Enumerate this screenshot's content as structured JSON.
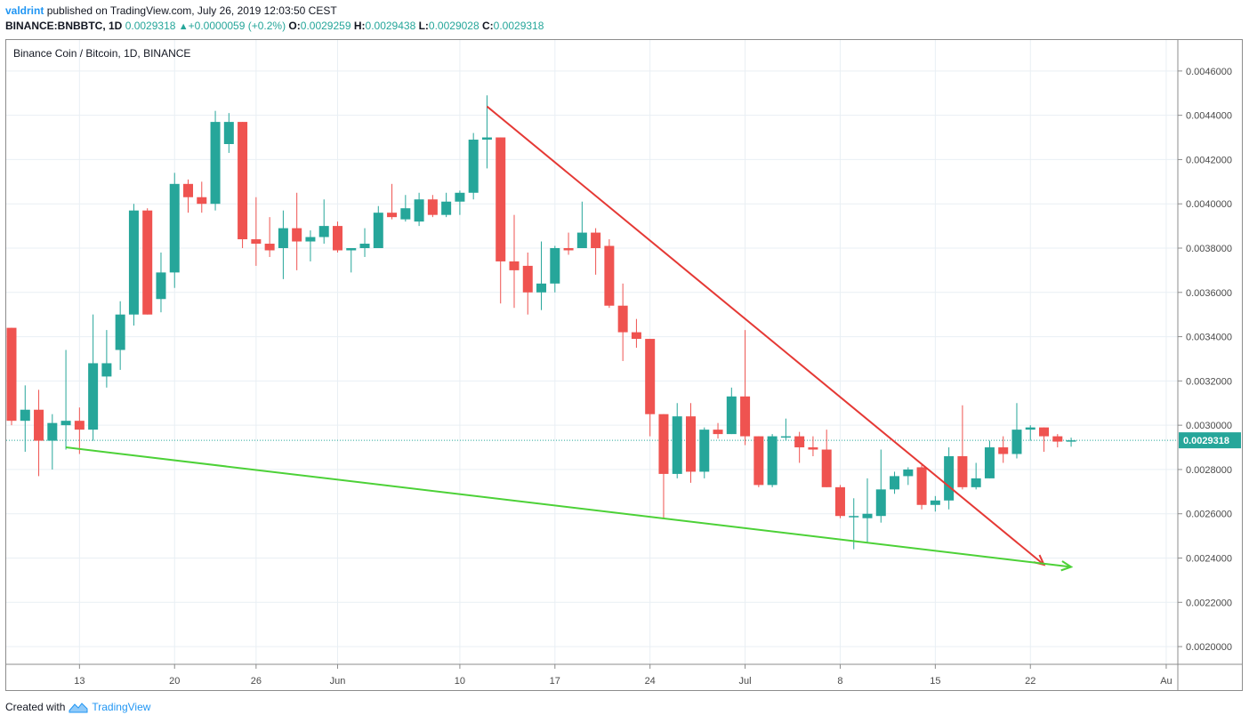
{
  "header": {
    "author": "valdrint",
    "published_text": "published on TradingView.com, July 26, 2019 12:03:50 CEST",
    "symbol": "BINANCE:BNBBTC, 1D",
    "last": "0.0029318",
    "change": "+0.0000059 (+0.2%)",
    "o_label": "O:",
    "o_value": "0.0029259",
    "h_label": "H:",
    "h_value": "0.0029438",
    "l_label": "L:",
    "l_value": "0.0029028",
    "c_label": "C:",
    "c_value": "0.0029318"
  },
  "legend": {
    "title": "Binance Coin / Bitcoin, 1D, BINANCE"
  },
  "footer": {
    "created_with": "Created with",
    "brand": "TradingView"
  },
  "colors": {
    "up": "#26a69a",
    "down": "#ef5350",
    "red_line": "#e53935",
    "green_line": "#4cd137",
    "price_tag": "#26a69a",
    "grid": "#e9eff4"
  },
  "chart_data": {
    "type": "candlestick",
    "title": "Binance Coin / Bitcoin, 1D, BINANCE",
    "ylim": [
      0.00192,
      0.00474
    ],
    "y_ticks": [
      "0.0020000",
      "0.0022000",
      "0.0024000",
      "0.0026000",
      "0.0028000",
      "0.0030000",
      "0.0032000",
      "0.0034000",
      "0.0036000",
      "0.0038000",
      "0.0040000",
      "0.0042000",
      "0.0044000",
      "0.0046000"
    ],
    "x_ticks": [
      {
        "label": "13",
        "i": 5
      },
      {
        "label": "20",
        "i": 12
      },
      {
        "label": "26",
        "i": 18
      },
      {
        "label": "Jun",
        "i": 24
      },
      {
        "label": "10",
        "i": 33
      },
      {
        "label": "17",
        "i": 40
      },
      {
        "label": "24",
        "i": 47
      },
      {
        "label": "Jul",
        "i": 54
      },
      {
        "label": "8",
        "i": 61
      },
      {
        "label": "15",
        "i": 68
      },
      {
        "label": "22",
        "i": 75
      },
      {
        "label": "Au",
        "i": 85
      }
    ],
    "last_price": "0.0029318",
    "last_price_value": 0.0029318,
    "candles": [
      {
        "o": 0.00344,
        "h": 0.00344,
        "l": 0.003,
        "c": 0.00302
      },
      {
        "o": 0.00302,
        "h": 0.00318,
        "l": 0.00288,
        "c": 0.00307
      },
      {
        "o": 0.00307,
        "h": 0.00316,
        "l": 0.00277,
        "c": 0.00293
      },
      {
        "o": 0.00293,
        "h": 0.00305,
        "l": 0.0028,
        "c": 0.00301
      },
      {
        "o": 0.003,
        "h": 0.00334,
        "l": 0.00289,
        "c": 0.00302
      },
      {
        "o": 0.00302,
        "h": 0.00308,
        "l": 0.00287,
        "c": 0.00298
      },
      {
        "o": 0.00298,
        "h": 0.0035,
        "l": 0.00293,
        "c": 0.00328
      },
      {
        "o": 0.00322,
        "h": 0.00343,
        "l": 0.00317,
        "c": 0.00328
      },
      {
        "o": 0.00334,
        "h": 0.00356,
        "l": 0.00325,
        "c": 0.0035
      },
      {
        "o": 0.0035,
        "h": 0.004,
        "l": 0.00345,
        "c": 0.00397
      },
      {
        "o": 0.00397,
        "h": 0.00398,
        "l": 0.0035,
        "c": 0.0035
      },
      {
        "o": 0.00357,
        "h": 0.00378,
        "l": 0.00351,
        "c": 0.00369
      },
      {
        "o": 0.00369,
        "h": 0.00414,
        "l": 0.00362,
        "c": 0.00409
      },
      {
        "o": 0.00409,
        "h": 0.00411,
        "l": 0.00396,
        "c": 0.00403
      },
      {
        "o": 0.00403,
        "h": 0.0041,
        "l": 0.00396,
        "c": 0.004
      },
      {
        "o": 0.004,
        "h": 0.00442,
        "l": 0.00397,
        "c": 0.00437
      },
      {
        "o": 0.00427,
        "h": 0.00441,
        "l": 0.00423,
        "c": 0.00437
      },
      {
        "o": 0.00437,
        "h": 0.00437,
        "l": 0.0038,
        "c": 0.00384
      },
      {
        "o": 0.00384,
        "h": 0.00403,
        "l": 0.00372,
        "c": 0.00382
      },
      {
        "o": 0.00382,
        "h": 0.00394,
        "l": 0.00376,
        "c": 0.00379
      },
      {
        "o": 0.0038,
        "h": 0.00397,
        "l": 0.00366,
        "c": 0.00389
      },
      {
        "o": 0.00389,
        "h": 0.00405,
        "l": 0.0037,
        "c": 0.00383
      },
      {
        "o": 0.00383,
        "h": 0.00388,
        "l": 0.00374,
        "c": 0.00385
      },
      {
        "o": 0.00385,
        "h": 0.00402,
        "l": 0.00382,
        "c": 0.0039
      },
      {
        "o": 0.0039,
        "h": 0.00392,
        "l": 0.00378,
        "c": 0.00379
      },
      {
        "o": 0.00379,
        "h": 0.0038,
        "l": 0.00369,
        "c": 0.0038
      },
      {
        "o": 0.0038,
        "h": 0.00389,
        "l": 0.00376,
        "c": 0.00382
      },
      {
        "o": 0.0038,
        "h": 0.00399,
        "l": 0.0038,
        "c": 0.00396
      },
      {
        "o": 0.00396,
        "h": 0.00409,
        "l": 0.00393,
        "c": 0.00394
      },
      {
        "o": 0.00393,
        "h": 0.00404,
        "l": 0.00392,
        "c": 0.00398
      },
      {
        "o": 0.00392,
        "h": 0.00405,
        "l": 0.0039,
        "c": 0.00402
      },
      {
        "o": 0.00402,
        "h": 0.00404,
        "l": 0.00394,
        "c": 0.00395
      },
      {
        "o": 0.00395,
        "h": 0.00405,
        "l": 0.00394,
        "c": 0.00401
      },
      {
        "o": 0.00401,
        "h": 0.00406,
        "l": 0.00395,
        "c": 0.00405
      },
      {
        "o": 0.00405,
        "h": 0.00432,
        "l": 0.00402,
        "c": 0.00429
      },
      {
        "o": 0.00429,
        "h": 0.00449,
        "l": 0.00416,
        "c": 0.0043
      },
      {
        "o": 0.0043,
        "h": 0.0043,
        "l": 0.00355,
        "c": 0.00374
      },
      {
        "o": 0.00374,
        "h": 0.00395,
        "l": 0.00353,
        "c": 0.0037
      },
      {
        "o": 0.00372,
        "h": 0.00378,
        "l": 0.0035,
        "c": 0.0036
      },
      {
        "o": 0.0036,
        "h": 0.00383,
        "l": 0.00352,
        "c": 0.00364
      },
      {
        "o": 0.00364,
        "h": 0.00381,
        "l": 0.0036,
        "c": 0.0038
      },
      {
        "o": 0.0038,
        "h": 0.00387,
        "l": 0.00377,
        "c": 0.00379
      },
      {
        "o": 0.0038,
        "h": 0.00401,
        "l": 0.0038,
        "c": 0.00387
      },
      {
        "o": 0.00387,
        "h": 0.00389,
        "l": 0.00368,
        "c": 0.0038
      },
      {
        "o": 0.00381,
        "h": 0.00384,
        "l": 0.00353,
        "c": 0.00354
      },
      {
        "o": 0.00354,
        "h": 0.00364,
        "l": 0.00329,
        "c": 0.00342
      },
      {
        "o": 0.00342,
        "h": 0.00348,
        "l": 0.00335,
        "c": 0.00339
      },
      {
        "o": 0.00339,
        "h": 0.00339,
        "l": 0.00295,
        "c": 0.00305
      },
      {
        "o": 0.00305,
        "h": 0.00305,
        "l": 0.00258,
        "c": 0.00278
      },
      {
        "o": 0.00278,
        "h": 0.0031,
        "l": 0.00276,
        "c": 0.00304
      },
      {
        "o": 0.00304,
        "h": 0.0031,
        "l": 0.00274,
        "c": 0.00279
      },
      {
        "o": 0.00279,
        "h": 0.00299,
        "l": 0.00276,
        "c": 0.00298
      },
      {
        "o": 0.00298,
        "h": 0.00301,
        "l": 0.00294,
        "c": 0.00296
      },
      {
        "o": 0.00296,
        "h": 0.00317,
        "l": 0.00296,
        "c": 0.00313
      },
      {
        "o": 0.00313,
        "h": 0.00343,
        "l": 0.00291,
        "c": 0.00295
      },
      {
        "o": 0.00295,
        "h": 0.00295,
        "l": 0.00272,
        "c": 0.00273
      },
      {
        "o": 0.00273,
        "h": 0.00296,
        "l": 0.00272,
        "c": 0.00295
      },
      {
        "o": 0.00295,
        "h": 0.00303,
        "l": 0.00293,
        "c": 0.00295
      },
      {
        "o": 0.00295,
        "h": 0.00297,
        "l": 0.00283,
        "c": 0.0029
      },
      {
        "o": 0.0029,
        "h": 0.00295,
        "l": 0.00286,
        "c": 0.00289
      },
      {
        "o": 0.00289,
        "h": 0.00298,
        "l": 0.00272,
        "c": 0.00272
      },
      {
        "o": 0.00272,
        "h": 0.00273,
        "l": 0.00258,
        "c": 0.00259
      },
      {
        "o": 0.00259,
        "h": 0.00267,
        "l": 0.00244,
        "c": 0.00259
      },
      {
        "o": 0.00258,
        "h": 0.00276,
        "l": 0.00247,
        "c": 0.0026
      },
      {
        "o": 0.00259,
        "h": 0.00289,
        "l": 0.00256,
        "c": 0.00271
      },
      {
        "o": 0.00271,
        "h": 0.00279,
        "l": 0.00269,
        "c": 0.00277
      },
      {
        "o": 0.00277,
        "h": 0.00281,
        "l": 0.00273,
        "c": 0.0028
      },
      {
        "o": 0.00281,
        "h": 0.00282,
        "l": 0.00262,
        "c": 0.00264
      },
      {
        "o": 0.00264,
        "h": 0.00268,
        "l": 0.00261,
        "c": 0.00266
      },
      {
        "o": 0.00266,
        "h": 0.0029,
        "l": 0.00262,
        "c": 0.00286
      },
      {
        "o": 0.00286,
        "h": 0.00309,
        "l": 0.00271,
        "c": 0.00272
      },
      {
        "o": 0.00272,
        "h": 0.00283,
        "l": 0.00271,
        "c": 0.00276
      },
      {
        "o": 0.00276,
        "h": 0.00293,
        "l": 0.00276,
        "c": 0.0029
      },
      {
        "o": 0.0029,
        "h": 0.00295,
        "l": 0.00283,
        "c": 0.00287
      },
      {
        "o": 0.00287,
        "h": 0.0031,
        "l": 0.00285,
        "c": 0.00298
      },
      {
        "o": 0.00298,
        "h": 0.003,
        "l": 0.00293,
        "c": 0.00299
      },
      {
        "o": 0.00299,
        "h": 0.00299,
        "l": 0.00288,
        "c": 0.00295
      },
      {
        "o": 0.00295,
        "h": 0.00296,
        "l": 0.0029,
        "c": 0.002926
      },
      {
        "o": 0.002926,
        "h": 0.002944,
        "l": 0.002903,
        "c": 0.0029318
      }
    ],
    "trendlines": [
      {
        "name": "red-trendline",
        "i1": 35,
        "p1": 0.00444,
        "i2": 76,
        "p2": 0.00237,
        "arrow": true
      },
      {
        "name": "green-trendline",
        "i1": 4,
        "p1": 0.0029,
        "i2": 78,
        "p2": 0.00236,
        "arrow": true
      }
    ]
  }
}
